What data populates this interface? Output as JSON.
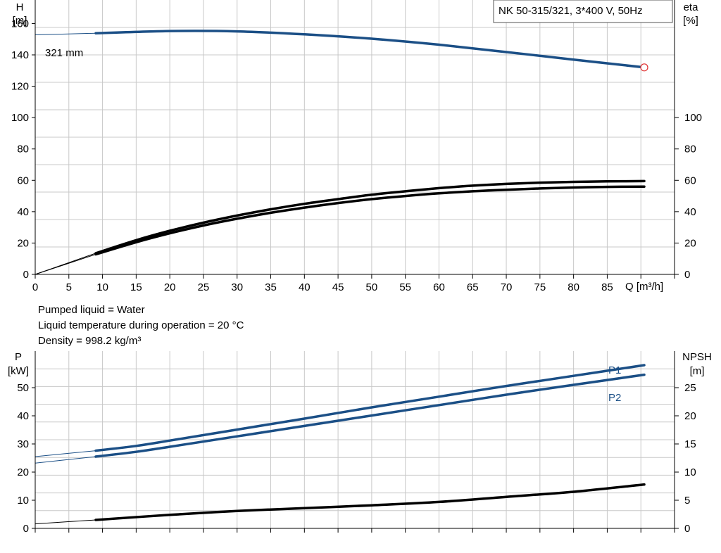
{
  "chart_data": [
    {
      "type": "line",
      "title": "NK 50-315/321, 3*400 V, 50Hz",
      "ylabel_left": [
        "H",
        "[m]"
      ],
      "ylabel_right": [
        "eta",
        "[%]"
      ],
      "xlabel": "Q [m³/h]",
      "xlim": [
        0,
        95
      ],
      "ylim_left": [
        0,
        175
      ],
      "ylim_right": [
        0,
        175
      ],
      "xticks": [
        0,
        5,
        10,
        15,
        20,
        25,
        30,
        35,
        40,
        45,
        50,
        55,
        60,
        65,
        70,
        75,
        80,
        85
      ],
      "yticks_left": [
        0,
        20,
        40,
        60,
        80,
        100,
        120,
        140,
        160
      ],
      "yticks_right": [
        0,
        20,
        40,
        60,
        80,
        100
      ],
      "grid": true,
      "annotation": "321 mm",
      "series": [
        {
          "id": "head",
          "color": "#1b4f86",
          "x": [
            0,
            9,
            20,
            30,
            40,
            50,
            60,
            70,
            80,
            90.5
          ],
          "y": [
            152.8,
            153.8,
            155.2,
            155.0,
            153.1,
            150.3,
            146.5,
            141.8,
            137.0,
            132.0
          ],
          "solid_from": 9,
          "end_marker": true
        },
        {
          "id": "eta-1",
          "color": "#000000",
          "x": [
            0,
            9,
            15,
            20,
            25,
            30,
            35,
            40,
            45,
            50,
            55,
            60,
            65,
            70,
            75,
            80,
            85,
            90.5
          ],
          "y": [
            0,
            13.5,
            21.8,
            27.8,
            33.0,
            37.5,
            41.5,
            45.0,
            48.0,
            50.8,
            53.0,
            55.0,
            56.6,
            57.7,
            58.5,
            59.0,
            59.3,
            59.5
          ],
          "solid_from": 9
        },
        {
          "id": "eta-2",
          "color": "#000000",
          "x": [
            0,
            9,
            15,
            20,
            25,
            30,
            35,
            40,
            45,
            50,
            55,
            60,
            65,
            70,
            75,
            80,
            85,
            90.5
          ],
          "y": [
            0,
            12.8,
            20.5,
            26.2,
            31.2,
            35.5,
            39.3,
            42.6,
            45.5,
            48.0,
            50.0,
            51.7,
            53.0,
            54.0,
            54.8,
            55.4,
            55.8,
            56.0
          ],
          "solid_from": 9
        }
      ]
    },
    {
      "type": "line",
      "ylabel_left": [
        "P",
        "[kW]"
      ],
      "ylabel_right": [
        "NPSH",
        "[m]"
      ],
      "xlim": [
        0,
        95
      ],
      "ylim_left": [
        0,
        63
      ],
      "ylim_right": [
        0,
        31.5
      ],
      "yticks_left": [
        0,
        10,
        20,
        30,
        40,
        50
      ],
      "yticks_right": [
        0,
        5,
        10,
        15,
        20,
        25
      ],
      "grid": true,
      "series": [
        {
          "id": "P1",
          "name": "P1",
          "color": "#1b4f86",
          "x": [
            0,
            9,
            15,
            20,
            30,
            40,
            50,
            60,
            70,
            80,
            90.5
          ],
          "y": [
            25.5,
            27.6,
            29.3,
            31.2,
            35.1,
            39.0,
            43.0,
            46.8,
            50.6,
            54.2,
            58.0
          ],
          "solid_from": 9
        },
        {
          "id": "P2",
          "name": "P2",
          "color": "#1b4f86",
          "x": [
            0,
            9,
            15,
            20,
            30,
            40,
            50,
            60,
            70,
            80,
            90.5
          ],
          "y": [
            23.2,
            25.5,
            27.2,
            29.0,
            32.7,
            36.4,
            40.1,
            43.8,
            47.5,
            51.0,
            54.6
          ],
          "solid_from": 9
        },
        {
          "id": "NPSH",
          "color": "#000000",
          "axis": "right",
          "x": [
            0,
            9,
            20,
            30,
            40,
            50,
            60,
            70,
            80,
            90.5
          ],
          "y": [
            0.8,
            1.5,
            2.4,
            3.1,
            3.6,
            4.1,
            4.7,
            5.6,
            6.5,
            7.8
          ],
          "solid_from": 9
        }
      ]
    }
  ],
  "info": {
    "lines": [
      "Pumped liquid = Water",
      "Liquid temperature during operation = 20 °C",
      "Density = 998.2 kg/m³"
    ]
  },
  "colors": {
    "grid": "#c8c8c8",
    "axis": "#000000",
    "curve_blue": "#1b4f86",
    "marker": "#e03030"
  }
}
